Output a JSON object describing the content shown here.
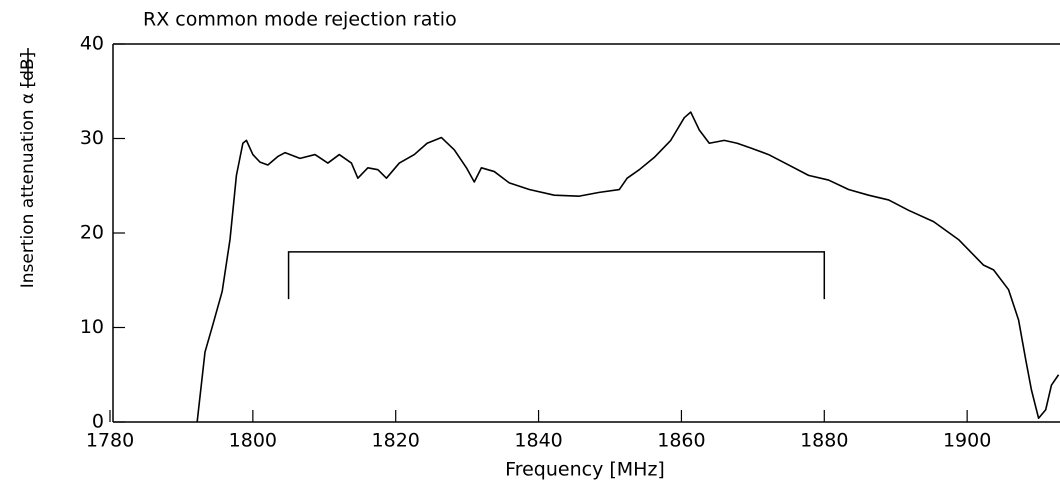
{
  "chart_data": {
    "type": "line",
    "title": "RX common mode rejection ratio",
    "xlabel": "Frequency [MHz]",
    "ylabel": "Insertion attenuation α [dB]",
    "xlim": [
      1780,
      1913
    ],
    "xticks": [
      1780,
      1800,
      1820,
      1840,
      1860,
      1880,
      1900
    ],
    "ylim": [
      0,
      40
    ],
    "yticks": [
      0,
      10,
      20,
      30,
      40
    ],
    "grid": false,
    "bracket": {
      "x0": 1805,
      "x1": 1880,
      "y_top": 18,
      "y_bottom": 13
    },
    "series": [
      {
        "name": "Insertion attenuation",
        "color": "#000000",
        "x": [
          1792.2,
          1793.3,
          1794.4,
          1795.7,
          1796.8,
          1797.7,
          1798.6,
          1799.1,
          1800,
          1801,
          1802.1,
          1803.5,
          1804.5,
          1806.6,
          1808.7,
          1810.5,
          1812.1,
          1813.8,
          1814.7,
          1816.1,
          1817.5,
          1818.7,
          1820.5,
          1822.6,
          1824.4,
          1826.4,
          1828.2,
          1829.9,
          1831,
          1832,
          1833.8,
          1835.9,
          1838.7,
          1842.2,
          1845.7,
          1848.5,
          1851.3,
          1852.4,
          1854.1,
          1856.2,
          1858.5,
          1860.4,
          1861.3,
          1862.5,
          1863.9,
          1866,
          1867.8,
          1869.7,
          1872.2,
          1875,
          1877.8,
          1880.6,
          1883.4,
          1886.2,
          1889,
          1891.8,
          1895.3,
          1898.8,
          1902.3,
          1903.7,
          1905.8,
          1907.2,
          1908.2,
          1909,
          1910,
          1911,
          1911.8,
          1912.8
        ],
        "values": [
          0,
          7.4,
          10.3,
          13.8,
          19.3,
          26.1,
          29.5,
          29.8,
          28.3,
          27.5,
          27.2,
          28.1,
          28.5,
          27.9,
          28.3,
          27.4,
          28.3,
          27.4,
          25.8,
          26.9,
          26.7,
          25.8,
          27.4,
          28.3,
          29.5,
          30.1,
          28.8,
          26.9,
          25.4,
          26.9,
          26.5,
          25.3,
          24.6,
          24.0,
          23.9,
          24.3,
          24.6,
          25.8,
          26.7,
          28.0,
          29.8,
          32.2,
          32.8,
          30.9,
          29.5,
          29.8,
          29.5,
          29.0,
          28.3,
          27.2,
          26.1,
          25.6,
          24.6,
          24.0,
          23.5,
          22.4,
          21.2,
          19.3,
          16.6,
          16.1,
          14.0,
          10.8,
          6.6,
          3.4,
          0.4,
          1.3,
          3.9,
          5.0
        ]
      }
    ]
  }
}
